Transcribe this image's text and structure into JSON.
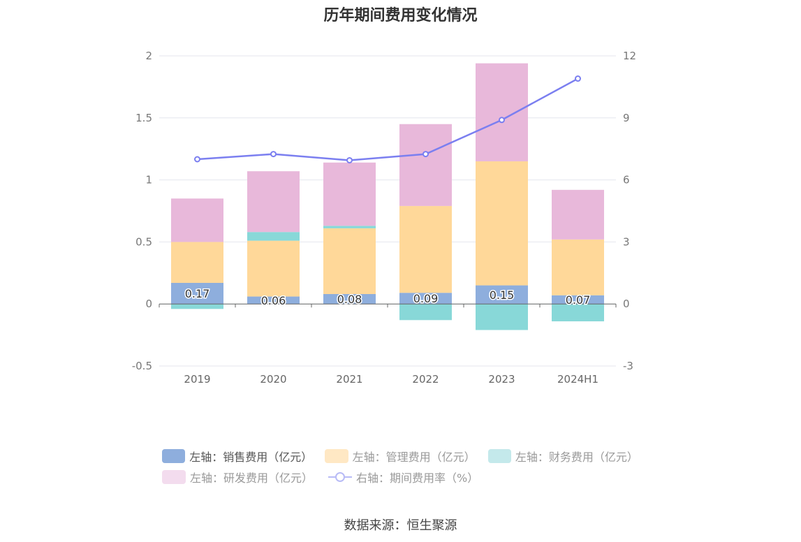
{
  "title": "历年期间费用变化情况",
  "source": "数据来源：恒生聚源",
  "chart_data": {
    "type": "bar",
    "stacked": true,
    "categories": [
      "2019",
      "2020",
      "2021",
      "2022",
      "2023",
      "2024H1"
    ],
    "y_left": {
      "ylim": [
        -0.5,
        2
      ],
      "ticks": [
        -0.5,
        0,
        0.5,
        1,
        1.5,
        2
      ],
      "tick_labels": [
        "-0.5",
        "0",
        "0.5",
        "1",
        "1.5",
        "2"
      ]
    },
    "y_right": {
      "ylim": [
        -3,
        12
      ],
      "ticks": [
        -3,
        0,
        3,
        6,
        9,
        12
      ],
      "tick_labels": [
        "-3",
        "0",
        "3",
        "6",
        "9",
        "12"
      ]
    },
    "grid": true,
    "legend_position": "bottom",
    "series": [
      {
        "name": "左轴：销售费用（亿元）",
        "axis": "left",
        "type": "bar",
        "color": "#8eaedd",
        "values": [
          0.17,
          0.06,
          0.08,
          0.09,
          0.15,
          0.07
        ],
        "labels": [
          "0.17",
          "0.06",
          "0.08",
          "0.09",
          "0.15",
          "0.07"
        ]
      },
      {
        "name": "左轴：管理费用（亿元）",
        "axis": "left",
        "type": "bar",
        "color": "#ffd899",
        "values": [
          0.33,
          0.45,
          0.53,
          0.7,
          1.0,
          0.45
        ]
      },
      {
        "name": "左轴：财务费用（亿元）",
        "axis": "left",
        "type": "bar",
        "color": "#88d8d8",
        "values": [
          -0.04,
          0.07,
          0.02,
          -0.13,
          -0.21,
          -0.14
        ]
      },
      {
        "name": "左轴：研发费用（亿元）",
        "axis": "left",
        "type": "bar",
        "color": "#e8b8da",
        "values": [
          0.35,
          0.49,
          0.51,
          0.66,
          0.79,
          0.4
        ]
      },
      {
        "name": "右轴：期间费用率（%）",
        "axis": "right",
        "type": "line",
        "color": "#7b7ff0",
        "values": [
          7.0,
          7.25,
          6.95,
          7.25,
          8.9,
          10.9
        ]
      }
    ],
    "legend_swatch_colors": [
      "#8eaedd",
      "#ffe8c4",
      "#c4e9eb",
      "#f3dcee",
      "#b8bbf6"
    ]
  }
}
